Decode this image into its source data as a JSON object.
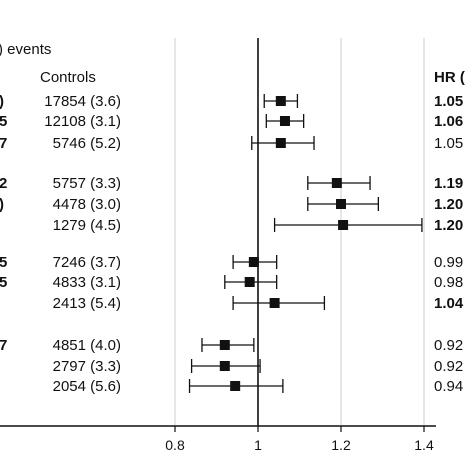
{
  "chart_data": {
    "type": "forest",
    "title": "",
    "header_events": ") events",
    "header_controls": "Controls",
    "header_hr": "HR (",
    "xlabel": "",
    "xlim": [
      0.6,
      1.4
    ],
    "xticks": [
      0.8,
      1,
      1.2,
      1.4
    ],
    "xtick_labels": [
      "0.8",
      "1",
      "1.2",
      "1.4"
    ],
    "reference_line": 1,
    "gridlines": [
      0.8,
      1.2,
      1.4
    ],
    "rows": [
      {
        "left_mark": ")",
        "controls": "17854 (3.6)",
        "hr": 1.055,
        "lo": 1.015,
        "hi": 1.095,
        "hr_label": "1.05"
      },
      {
        "left_mark": "5",
        "controls": "12108 (3.1)",
        "hr": 1.065,
        "lo": 1.02,
        "hi": 1.11,
        "hr_label": "1.06"
      },
      {
        "left_mark": "7",
        "controls": "5746 (5.2)",
        "hr": 1.055,
        "lo": 0.985,
        "hi": 1.135,
        "hr_label": "1.05"
      },
      {
        "left_mark": "2",
        "controls": "5757 (3.3)",
        "hr": 1.19,
        "lo": 1.12,
        "hi": 1.27,
        "hr_label": "1.19"
      },
      {
        "left_mark": ")",
        "controls": "4478 (3.0)",
        "hr": 1.2,
        "lo": 1.12,
        "hi": 1.29,
        "hr_label": "1.20"
      },
      {
        "left_mark": "",
        "controls": "1279 (4.5)",
        "hr": 1.205,
        "lo": 1.04,
        "hi": 1.395,
        "hr_label": "1.20"
      },
      {
        "left_mark": "5",
        "controls": "7246 (3.7)",
        "hr": 0.99,
        "lo": 0.94,
        "hi": 1.045,
        "hr_label": "0.99"
      },
      {
        "left_mark": "5",
        "controls": "4833 (3.1)",
        "hr": 0.98,
        "lo": 0.92,
        "hi": 1.045,
        "hr_label": "0.98"
      },
      {
        "left_mark": "",
        "controls": "2413 (5.4)",
        "hr": 1.04,
        "lo": 0.94,
        "hi": 1.16,
        "hr_label": "1.04"
      },
      {
        "left_mark": "7",
        "controls": "4851 (4.0)",
        "hr": 0.92,
        "lo": 0.865,
        "hi": 0.99,
        "hr_label": "0.92"
      },
      {
        "left_mark": "",
        "controls": "2797 (3.3)",
        "hr": 0.92,
        "lo": 0.84,
        "hi": 1.005,
        "hr_label": "0.92"
      },
      {
        "left_mark": "",
        "controls": "2054 (5.6)",
        "hr": 0.945,
        "lo": 0.835,
        "hi": 1.06,
        "hr_label": "0.94"
      }
    ]
  }
}
